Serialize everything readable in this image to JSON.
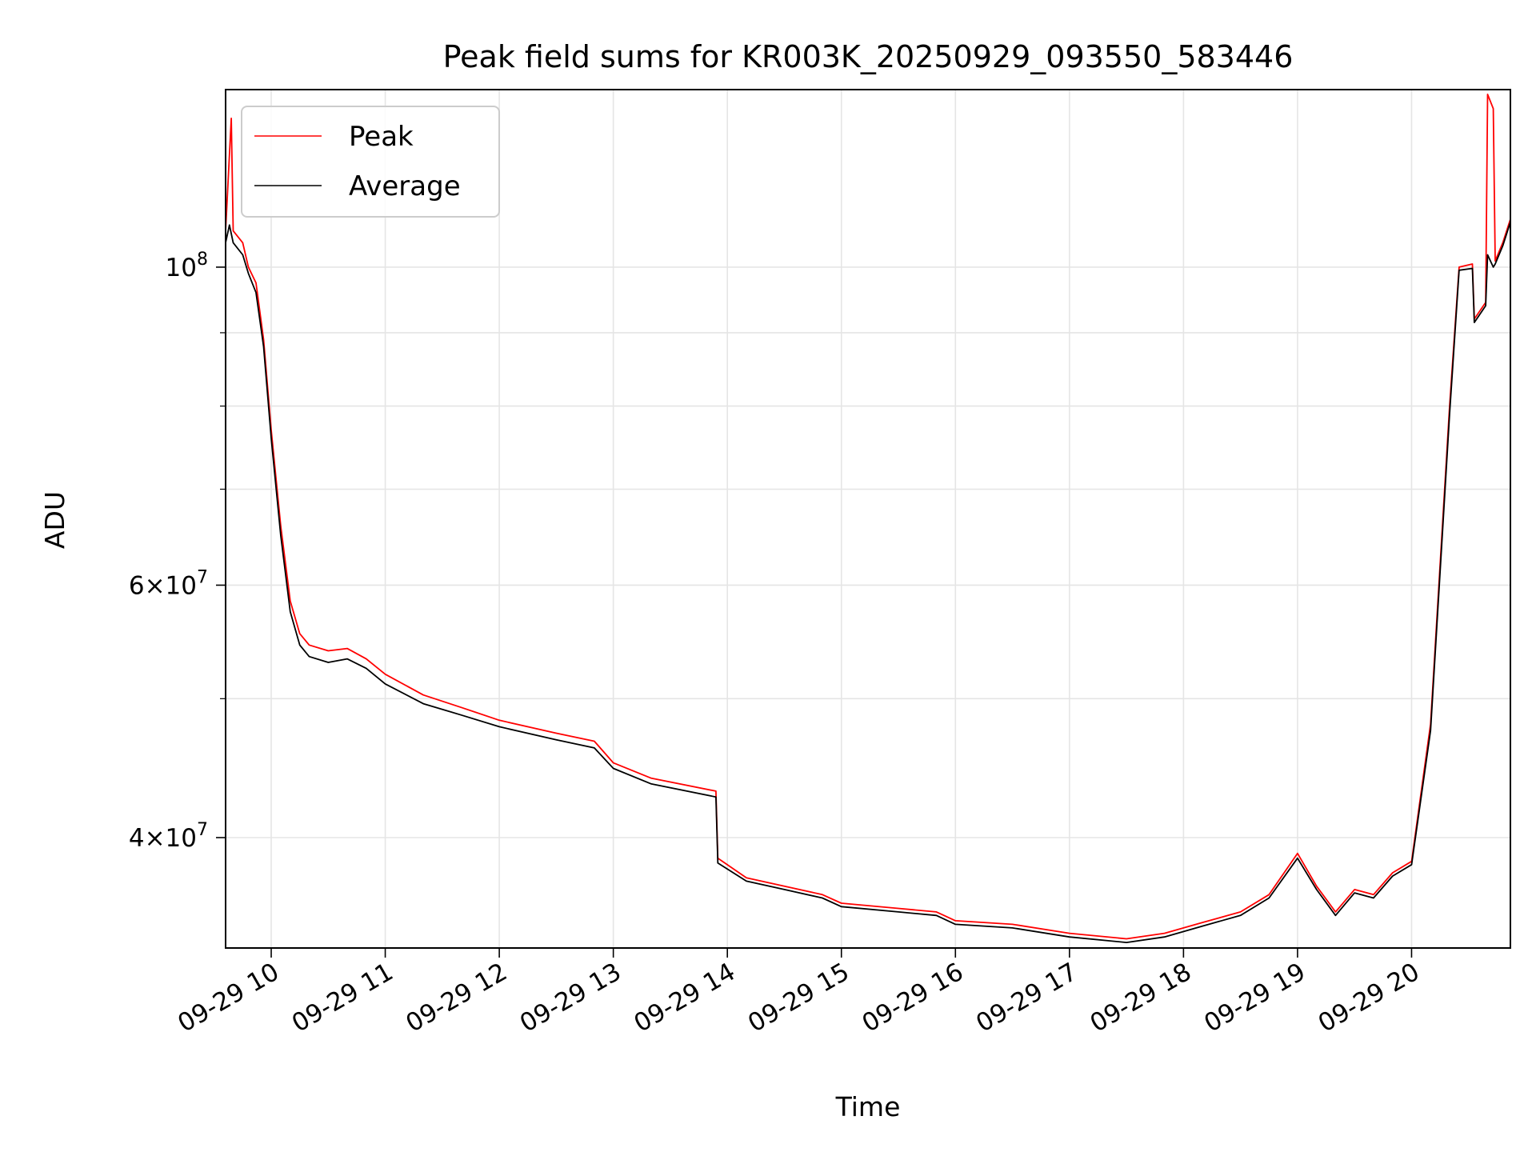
{
  "chart_data": {
    "type": "line",
    "title": "Peak field sums for KR003K_20250929_093550_583446",
    "xlabel": "Time",
    "ylabel": "ADU",
    "yscale": "log",
    "xlim": [
      "2025-09-29 09:36",
      "2025-09-29 20:52"
    ],
    "ylim": [
      33500000,
      133000000
    ],
    "grid": true,
    "legend_position": "top-left",
    "x_ticks": [
      {
        "t": "2025-09-29 10:00",
        "label": "09-29 10"
      },
      {
        "t": "2025-09-29 11:00",
        "label": "09-29 11"
      },
      {
        "t": "2025-09-29 12:00",
        "label": "09-29 12"
      },
      {
        "t": "2025-09-29 13:00",
        "label": "09-29 13"
      },
      {
        "t": "2025-09-29 14:00",
        "label": "09-29 14"
      },
      {
        "t": "2025-09-29 15:00",
        "label": "09-29 15"
      },
      {
        "t": "2025-09-29 16:00",
        "label": "09-29 16"
      },
      {
        "t": "2025-09-29 17:00",
        "label": "09-29 17"
      },
      {
        "t": "2025-09-29 18:00",
        "label": "09-29 18"
      },
      {
        "t": "2025-09-29 19:00",
        "label": "09-29 19"
      },
      {
        "t": "2025-09-29 20:00",
        "label": "09-29 20"
      }
    ],
    "y_major_ticks": [
      {
        "value": 40000000,
        "mantissa": "4",
        "exponent": "7"
      },
      {
        "value": 60000000,
        "mantissa": "6",
        "exponent": "7"
      },
      {
        "value": 100000000,
        "mantissa": "",
        "exponent": "8"
      }
    ],
    "y_minor_ticks": [
      50000000,
      70000000,
      80000000,
      90000000
    ],
    "series": [
      {
        "name": "Peak",
        "color": "#ff0000",
        "points": [
          [
            "2025-09-29 09:36",
            106000000
          ],
          [
            "2025-09-29 09:39",
            127000000
          ],
          [
            "2025-09-29 09:40",
            106000000
          ],
          [
            "2025-09-29 09:45",
            104000000
          ],
          [
            "2025-09-29 09:48",
            100000000
          ],
          [
            "2025-09-29 09:52",
            97500000
          ],
          [
            "2025-09-29 09:56",
            89000000
          ],
          [
            "2025-09-29 10:00",
            77000000
          ],
          [
            "2025-09-29 10:05",
            66000000
          ],
          [
            "2025-09-29 10:10",
            58500000
          ],
          [
            "2025-09-29 10:15",
            55500000
          ],
          [
            "2025-09-29 10:20",
            54500000
          ],
          [
            "2025-09-29 10:30",
            54000000
          ],
          [
            "2025-09-29 10:40",
            54200000
          ],
          [
            "2025-09-29 10:50",
            53300000
          ],
          [
            "2025-09-29 11:00",
            52000000
          ],
          [
            "2025-09-29 11:20",
            50300000
          ],
          [
            "2025-09-29 11:40",
            49300000
          ],
          [
            "2025-09-29 12:00",
            48300000
          ],
          [
            "2025-09-29 12:30",
            47300000
          ],
          [
            "2025-09-29 12:50",
            46700000
          ],
          [
            "2025-09-29 13:00",
            45100000
          ],
          [
            "2025-09-29 13:20",
            44000000
          ],
          [
            "2025-09-29 13:54",
            43100000
          ],
          [
            "2025-09-29 13:55",
            38700000
          ],
          [
            "2025-09-29 14:10",
            37500000
          ],
          [
            "2025-09-29 14:30",
            37000000
          ],
          [
            "2025-09-29 14:50",
            36500000
          ],
          [
            "2025-09-29 15:00",
            36000000
          ],
          [
            "2025-09-29 15:30",
            35700000
          ],
          [
            "2025-09-29 15:50",
            35500000
          ],
          [
            "2025-09-29 16:00",
            35000000
          ],
          [
            "2025-09-29 16:30",
            34800000
          ],
          [
            "2025-09-29 17:00",
            34300000
          ],
          [
            "2025-09-29 17:30",
            34000000
          ],
          [
            "2025-09-29 17:50",
            34300000
          ],
          [
            "2025-09-29 18:10",
            34900000
          ],
          [
            "2025-09-29 18:30",
            35500000
          ],
          [
            "2025-09-29 18:45",
            36500000
          ],
          [
            "2025-09-29 19:00",
            39000000
          ],
          [
            "2025-09-29 19:10",
            37000000
          ],
          [
            "2025-09-29 19:20",
            35500000
          ],
          [
            "2025-09-29 19:30",
            36800000
          ],
          [
            "2025-09-29 19:40",
            36500000
          ],
          [
            "2025-09-29 19:50",
            37800000
          ],
          [
            "2025-09-29 20:00",
            38500000
          ],
          [
            "2025-09-29 20:10",
            48000000
          ],
          [
            "2025-09-29 20:20",
            80000000
          ],
          [
            "2025-09-29 20:25",
            100000000
          ],
          [
            "2025-09-29 20:32",
            100500000
          ],
          [
            "2025-09-29 20:33",
            92000000
          ],
          [
            "2025-09-29 20:39",
            94500000
          ],
          [
            "2025-09-29 20:40",
            132000000
          ],
          [
            "2025-09-29 20:43",
            129000000
          ],
          [
            "2025-09-29 20:44",
            101000000
          ],
          [
            "2025-09-29 20:48",
            104000000
          ],
          [
            "2025-09-29 20:52",
            108000000
          ]
        ]
      },
      {
        "name": "Average",
        "color": "#000000",
        "points": [
          [
            "2025-09-29 09:36",
            104000000
          ],
          [
            "2025-09-29 09:38",
            107000000
          ],
          [
            "2025-09-29 09:40",
            104000000
          ],
          [
            "2025-09-29 09:45",
            102000000
          ],
          [
            "2025-09-29 09:48",
            99000000
          ],
          [
            "2025-09-29 09:52",
            96000000
          ],
          [
            "2025-09-29 09:56",
            88000000
          ],
          [
            "2025-09-29 10:00",
            76000000
          ],
          [
            "2025-09-29 10:05",
            65000000
          ],
          [
            "2025-09-29 10:10",
            57500000
          ],
          [
            "2025-09-29 10:15",
            54500000
          ],
          [
            "2025-09-29 10:20",
            53500000
          ],
          [
            "2025-09-29 10:30",
            53000000
          ],
          [
            "2025-09-29 10:40",
            53300000
          ],
          [
            "2025-09-29 10:50",
            52500000
          ],
          [
            "2025-09-29 11:00",
            51200000
          ],
          [
            "2025-09-29 11:20",
            49600000
          ],
          [
            "2025-09-29 11:40",
            48700000
          ],
          [
            "2025-09-29 12:00",
            47800000
          ],
          [
            "2025-09-29 12:30",
            46800000
          ],
          [
            "2025-09-29 12:50",
            46200000
          ],
          [
            "2025-09-29 13:00",
            44700000
          ],
          [
            "2025-09-29 13:20",
            43600000
          ],
          [
            "2025-09-29 13:54",
            42700000
          ],
          [
            "2025-09-29 13:55",
            38400000
          ],
          [
            "2025-09-29 14:10",
            37300000
          ],
          [
            "2025-09-29 14:30",
            36800000
          ],
          [
            "2025-09-29 14:50",
            36300000
          ],
          [
            "2025-09-29 15:00",
            35800000
          ],
          [
            "2025-09-29 15:30",
            35500000
          ],
          [
            "2025-09-29 15:50",
            35300000
          ],
          [
            "2025-09-29 16:00",
            34800000
          ],
          [
            "2025-09-29 16:30",
            34600000
          ],
          [
            "2025-09-29 17:00",
            34100000
          ],
          [
            "2025-09-29 17:30",
            33800000
          ],
          [
            "2025-09-29 17:50",
            34100000
          ],
          [
            "2025-09-29 18:10",
            34700000
          ],
          [
            "2025-09-29 18:30",
            35300000
          ],
          [
            "2025-09-29 18:45",
            36300000
          ],
          [
            "2025-09-29 19:00",
            38700000
          ],
          [
            "2025-09-29 19:10",
            36800000
          ],
          [
            "2025-09-29 19:20",
            35300000
          ],
          [
            "2025-09-29 19:30",
            36600000
          ],
          [
            "2025-09-29 19:40",
            36300000
          ],
          [
            "2025-09-29 19:50",
            37600000
          ],
          [
            "2025-09-29 20:00",
            38300000
          ],
          [
            "2025-09-29 20:10",
            47500000
          ],
          [
            "2025-09-29 20:20",
            79000000
          ],
          [
            "2025-09-29 20:25",
            99500000
          ],
          [
            "2025-09-29 20:32",
            99800000
          ],
          [
            "2025-09-29 20:33",
            91500000
          ],
          [
            "2025-09-29 20:39",
            94000000
          ],
          [
            "2025-09-29 20:40",
            102000000
          ],
          [
            "2025-09-29 20:43",
            100000000
          ],
          [
            "2025-09-29 20:44",
            100500000
          ],
          [
            "2025-09-29 20:48",
            103500000
          ],
          [
            "2025-09-29 20:52",
            107500000
          ]
        ]
      }
    ]
  }
}
